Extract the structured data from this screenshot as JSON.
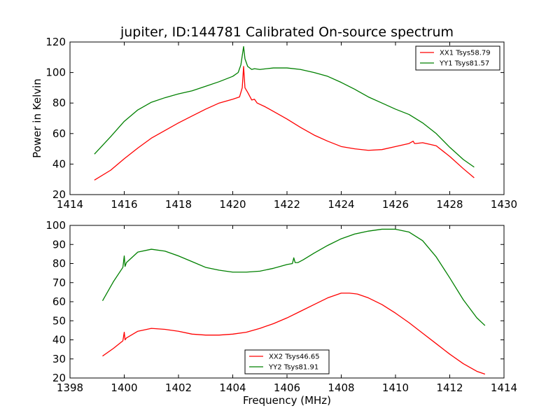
{
  "chart_data": [
    {
      "type": "line",
      "title": "jupiter, ID:144781 Calibrated On-source spectrum",
      "xlabel": "",
      "ylabel": "Power in Kelvin",
      "xlim": [
        1414,
        1430
      ],
      "ylim": [
        20,
        120
      ],
      "xticks": [
        1414,
        1416,
        1418,
        1420,
        1422,
        1424,
        1426,
        1428,
        1430
      ],
      "yticks": [
        20,
        40,
        60,
        80,
        100,
        120
      ],
      "legend_position": "top-right",
      "series": [
        {
          "name": "XX1 Tsys58.79",
          "color": "#ff0000",
          "x": [
            1414.9,
            1415.5,
            1416,
            1416.5,
            1417,
            1417.5,
            1418,
            1418.5,
            1419,
            1419.5,
            1420,
            1420.25,
            1420.35,
            1420.4,
            1420.45,
            1420.55,
            1420.7,
            1420.8,
            1420.9,
            1421.2,
            1421.6,
            1422,
            1422.5,
            1423,
            1423.5,
            1424,
            1424.5,
            1425,
            1425.5,
            1426,
            1426.5,
            1426.65,
            1426.7,
            1426.75,
            1427,
            1427.5,
            1428,
            1428.5,
            1428.9
          ],
          "values": [
            29.5,
            36,
            43.5,
            50.5,
            57,
            62,
            67,
            71.5,
            76,
            80,
            82.5,
            84,
            90,
            104,
            90,
            87,
            82,
            82.5,
            80,
            77.5,
            73.5,
            69.5,
            64,
            59,
            55,
            51.5,
            50,
            49,
            49.5,
            51.5,
            53.5,
            55,
            53.5,
            53.5,
            54,
            52,
            45,
            37,
            31
          ]
        },
        {
          "name": "YY1 Tsys81.57",
          "color": "#008000",
          "x": [
            1414.9,
            1415.5,
            1416,
            1416.5,
            1417,
            1417.5,
            1418,
            1418.5,
            1419,
            1419.5,
            1420,
            1420.2,
            1420.3,
            1420.4,
            1420.45,
            1420.55,
            1420.7,
            1420.8,
            1421,
            1421.5,
            1422,
            1422.5,
            1423,
            1423.5,
            1424,
            1424.5,
            1425,
            1425.5,
            1426,
            1426.5,
            1427,
            1427.5,
            1428,
            1428.5,
            1428.9
          ],
          "values": [
            46.5,
            58,
            68,
            75.5,
            80.5,
            83.5,
            86,
            88,
            91,
            94,
            97.5,
            100,
            105,
            117,
            109,
            104,
            102,
            102.5,
            102,
            103,
            103,
            102,
            100,
            97.5,
            93.5,
            89,
            84,
            80,
            76,
            72.5,
            67,
            60,
            51,
            43,
            38
          ]
        }
      ]
    },
    {
      "type": "line",
      "title": "",
      "xlabel": "Frequency (MHz)",
      "ylabel": "",
      "xlim": [
        1398,
        1414
      ],
      "ylim": [
        20,
        100
      ],
      "xticks": [
        1398,
        1400,
        1402,
        1404,
        1406,
        1408,
        1410,
        1412,
        1414
      ],
      "yticks": [
        20,
        30,
        40,
        50,
        60,
        70,
        80,
        90,
        100
      ],
      "legend_position": "lower-center",
      "series": [
        {
          "name": "XX2 Tsys46.65",
          "color": "#ff0000",
          "x": [
            1399.2,
            1399.6,
            1399.95,
            1400,
            1400.03,
            1400.08,
            1400.5,
            1401,
            1401.5,
            1402,
            1402.5,
            1403,
            1403.5,
            1404,
            1404.5,
            1405,
            1405.5,
            1406,
            1406.5,
            1407,
            1407.5,
            1408,
            1408.3,
            1408.6,
            1409,
            1409.5,
            1410,
            1410.5,
            1411,
            1411.5,
            1412,
            1412.5,
            1413,
            1413.3
          ],
          "values": [
            31.5,
            35.5,
            39.5,
            44,
            40,
            41,
            44.5,
            46,
            45.5,
            44.5,
            43,
            42.5,
            42.5,
            43,
            44,
            46,
            48.5,
            51.5,
            55,
            58.5,
            62,
            64.5,
            64.5,
            64,
            62,
            58.5,
            54,
            49,
            43.5,
            38,
            32.5,
            27.5,
            23.5,
            22
          ]
        },
        {
          "name": "YY2 Tsys81.91",
          "color": "#008000",
          "x": [
            1399.2,
            1399.6,
            1399.95,
            1400,
            1400.03,
            1400.08,
            1400.5,
            1401,
            1401.5,
            1402,
            1402.5,
            1403,
            1403.5,
            1404,
            1404.5,
            1405,
            1405.5,
            1406,
            1406.2,
            1406.25,
            1406.3,
            1406.4,
            1406.6,
            1407,
            1407.5,
            1408,
            1408.5,
            1409,
            1409.5,
            1410,
            1410.5,
            1411,
            1411.5,
            1412,
            1412.5,
            1413,
            1413.3
          ],
          "values": [
            60.5,
            70.5,
            78,
            84,
            78.5,
            80.5,
            86,
            87.5,
            86.5,
            84,
            81,
            78,
            76.5,
            75.5,
            75.5,
            76,
            77.5,
            79.5,
            80,
            83,
            80.5,
            80.5,
            82,
            85.5,
            89.5,
            93,
            95.5,
            97,
            98,
            98,
            96.5,
            92,
            83.5,
            72.5,
            61,
            51.5,
            47.5
          ]
        }
      ]
    }
  ]
}
